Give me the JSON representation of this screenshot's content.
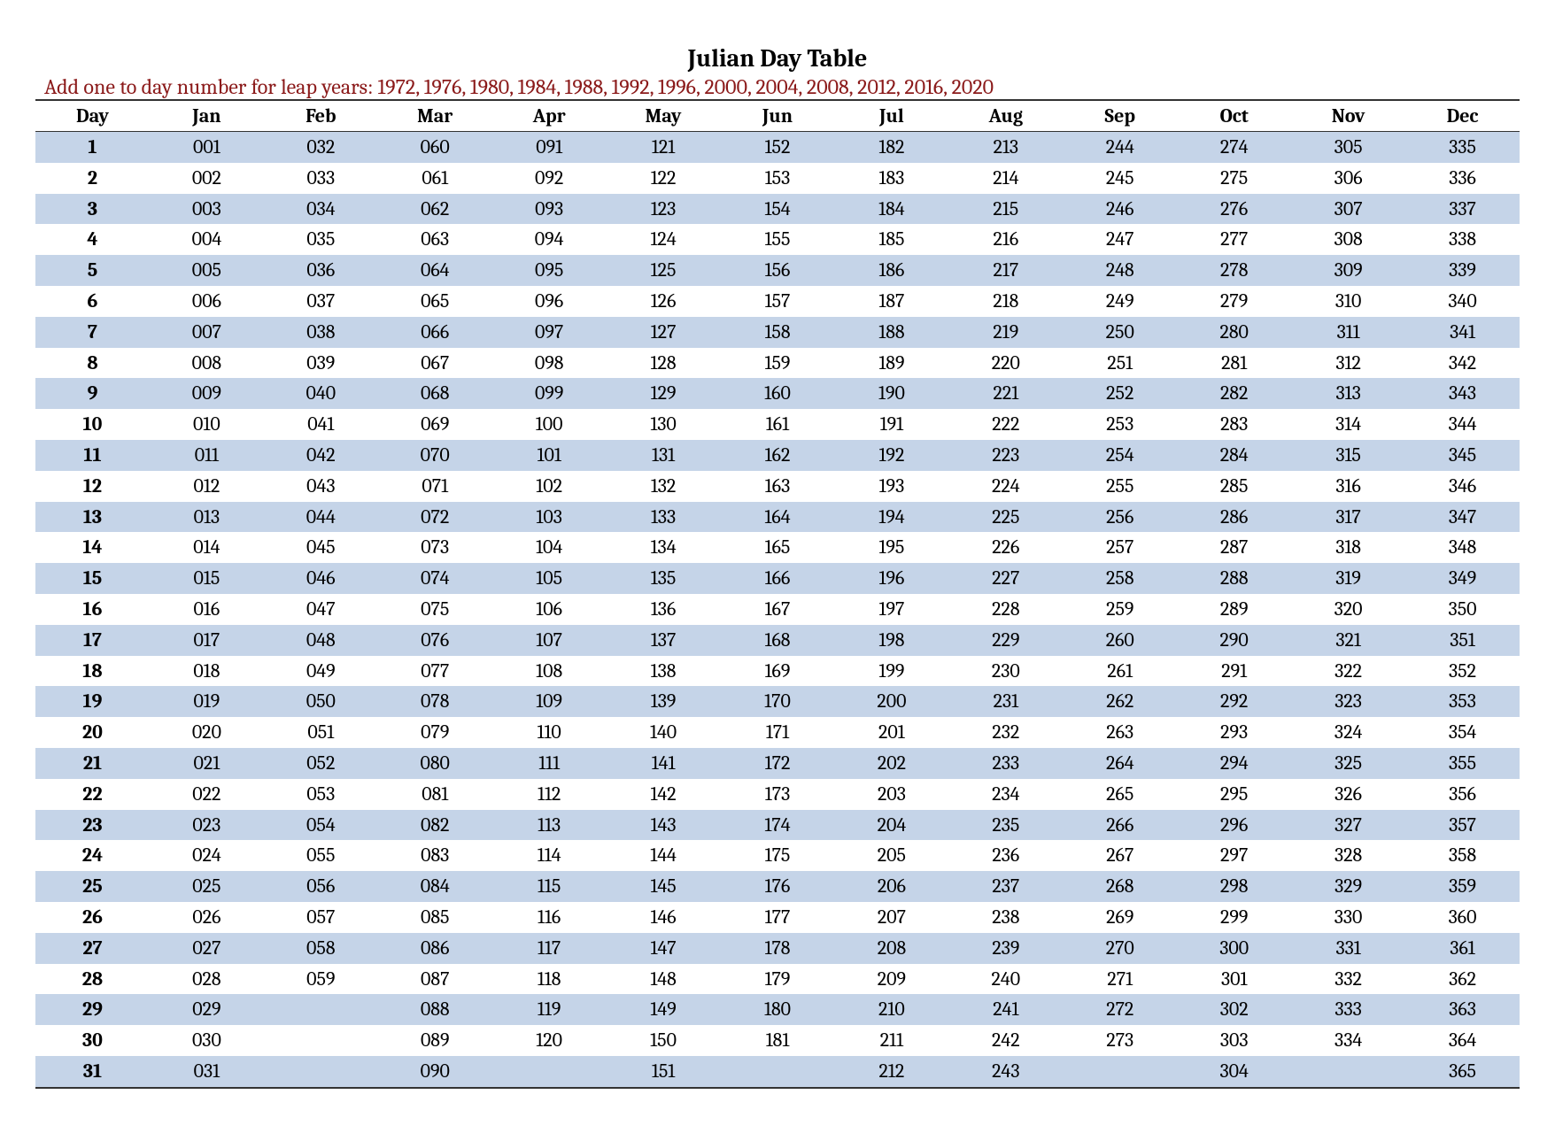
{
  "title": "Julian Day Table",
  "subtitle": "Add one to day number for leap years: 1972, 1976, 1980, 1984, 1988, 1992, 1996, 2000, 2004, 2008, 2012, 2016, 2020",
  "columns": [
    "Day",
    "Jan",
    "Feb",
    "Mar",
    "Apr",
    "May",
    "Jun",
    "Jul",
    "Aug",
    "Sep",
    "Oct",
    "Nov",
    "Dec"
  ],
  "rows": [
    [
      "1",
      "001",
      "032",
      "060",
      "091",
      "121",
      "152",
      "182",
      "213",
      "244",
      "274",
      "305",
      "335"
    ],
    [
      "2",
      "002",
      "033",
      "061",
      "092",
      "122",
      "153",
      "183",
      "214",
      "245",
      "275",
      "306",
      "336"
    ],
    [
      "3",
      "003",
      "034",
      "062",
      "093",
      "123",
      "154",
      "184",
      "215",
      "246",
      "276",
      "307",
      "337"
    ],
    [
      "4",
      "004",
      "035",
      "063",
      "094",
      "124",
      "155",
      "185",
      "216",
      "247",
      "277",
      "308",
      "338"
    ],
    [
      "5",
      "005",
      "036",
      "064",
      "095",
      "125",
      "156",
      "186",
      "217",
      "248",
      "278",
      "309",
      "339"
    ],
    [
      "6",
      "006",
      "037",
      "065",
      "096",
      "126",
      "157",
      "187",
      "218",
      "249",
      "279",
      "310",
      "340"
    ],
    [
      "7",
      "007",
      "038",
      "066",
      "097",
      "127",
      "158",
      "188",
      "219",
      "250",
      "280",
      "311",
      "341"
    ],
    [
      "8",
      "008",
      "039",
      "067",
      "098",
      "128",
      "159",
      "189",
      "220",
      "251",
      "281",
      "312",
      "342"
    ],
    [
      "9",
      "009",
      "040",
      "068",
      "099",
      "129",
      "160",
      "190",
      "221",
      "252",
      "282",
      "313",
      "343"
    ],
    [
      "10",
      "010",
      "041",
      "069",
      "100",
      "130",
      "161",
      "191",
      "222",
      "253",
      "283",
      "314",
      "344"
    ],
    [
      "11",
      "011",
      "042",
      "070",
      "101",
      "131",
      "162",
      "192",
      "223",
      "254",
      "284",
      "315",
      "345"
    ],
    [
      "12",
      "012",
      "043",
      "071",
      "102",
      "132",
      "163",
      "193",
      "224",
      "255",
      "285",
      "316",
      "346"
    ],
    [
      "13",
      "013",
      "044",
      "072",
      "103",
      "133",
      "164",
      "194",
      "225",
      "256",
      "286",
      "317",
      "347"
    ],
    [
      "14",
      "014",
      "045",
      "073",
      "104",
      "134",
      "165",
      "195",
      "226",
      "257",
      "287",
      "318",
      "348"
    ],
    [
      "15",
      "015",
      "046",
      "074",
      "105",
      "135",
      "166",
      "196",
      "227",
      "258",
      "288",
      "319",
      "349"
    ],
    [
      "16",
      "016",
      "047",
      "075",
      "106",
      "136",
      "167",
      "197",
      "228",
      "259",
      "289",
      "320",
      "350"
    ],
    [
      "17",
      "017",
      "048",
      "076",
      "107",
      "137",
      "168",
      "198",
      "229",
      "260",
      "290",
      "321",
      "351"
    ],
    [
      "18",
      "018",
      "049",
      "077",
      "108",
      "138",
      "169",
      "199",
      "230",
      "261",
      "291",
      "322",
      "352"
    ],
    [
      "19",
      "019",
      "050",
      "078",
      "109",
      "139",
      "170",
      "200",
      "231",
      "262",
      "292",
      "323",
      "353"
    ],
    [
      "20",
      "020",
      "051",
      "079",
      "110",
      "140",
      "171",
      "201",
      "232",
      "263",
      "293",
      "324",
      "354"
    ],
    [
      "21",
      "021",
      "052",
      "080",
      "111",
      "141",
      "172",
      "202",
      "233",
      "264",
      "294",
      "325",
      "355"
    ],
    [
      "22",
      "022",
      "053",
      "081",
      "112",
      "142",
      "173",
      "203",
      "234",
      "265",
      "295",
      "326",
      "356"
    ],
    [
      "23",
      "023",
      "054",
      "082",
      "113",
      "143",
      "174",
      "204",
      "235",
      "266",
      "296",
      "327",
      "357"
    ],
    [
      "24",
      "024",
      "055",
      "083",
      "114",
      "144",
      "175",
      "205",
      "236",
      "267",
      "297",
      "328",
      "358"
    ],
    [
      "25",
      "025",
      "056",
      "084",
      "115",
      "145",
      "176",
      "206",
      "237",
      "268",
      "298",
      "329",
      "359"
    ],
    [
      "26",
      "026",
      "057",
      "085",
      "116",
      "146",
      "177",
      "207",
      "238",
      "269",
      "299",
      "330",
      "360"
    ],
    [
      "27",
      "027",
      "058",
      "086",
      "117",
      "147",
      "178",
      "208",
      "239",
      "270",
      "300",
      "331",
      "361"
    ],
    [
      "28",
      "028",
      "059",
      "087",
      "118",
      "148",
      "179",
      "209",
      "240",
      "271",
      "301",
      "332",
      "362"
    ],
    [
      "29",
      "029",
      "",
      "088",
      "119",
      "149",
      "180",
      "210",
      "241",
      "272",
      "302",
      "333",
      "363"
    ],
    [
      "30",
      "030",
      "",
      "089",
      "120",
      "150",
      "181",
      "211",
      "242",
      "273",
      "303",
      "334",
      "364"
    ],
    [
      "31",
      "031",
      "",
      "090",
      "",
      "151",
      "",
      "212",
      "243",
      "",
      "304",
      "",
      "365"
    ]
  ],
  "style": {
    "title_color": "#000000",
    "title_fontsize": 28,
    "subtitle_color": "#8b1a1a",
    "subtitle_fontsize": 24,
    "row_odd_bg": "#c5d4e8",
    "row_even_bg": "#ffffff",
    "border_color": "#333333",
    "font_family": "Cambria, Georgia, serif",
    "cell_fontsize": 22
  }
}
